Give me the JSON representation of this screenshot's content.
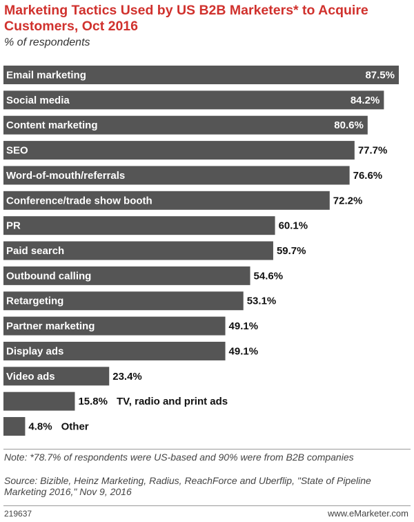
{
  "chart_data": {
    "type": "bar",
    "orientation": "horizontal",
    "title": "Marketing Tactics Used by US B2B Marketers* to Acquire Customers, Oct 2016",
    "subtitle": "% of respondents",
    "categories": [
      "Email marketing",
      "Social media",
      "Content marketing",
      "SEO",
      "Word-of-mouth/referrals",
      "Conference/trade show booth",
      "PR",
      "Paid search",
      "Outbound calling",
      "Retargeting",
      "Partner marketing",
      "Display ads",
      "Video ads",
      "TV, radio and print ads",
      "Other"
    ],
    "values": [
      87.5,
      84.2,
      80.6,
      77.7,
      76.6,
      72.2,
      60.1,
      59.7,
      54.6,
      53.1,
      49.1,
      49.1,
      23.4,
      15.8,
      4.8
    ],
    "value_labels": [
      "87.5%",
      "84.2%",
      "80.6%",
      "77.7%",
      "76.6%",
      "72.2%",
      "60.1%",
      "59.7%",
      "54.6%",
      "53.1%",
      "49.1%",
      "49.1%",
      "23.4%",
      "15.8%",
      "4.8%"
    ],
    "color": "#555555",
    "note": "Note: *78.7% of respondents were US-based and 90% were from B2B companies",
    "source": "Source: Bizible, Heinz Marketing, Radius, ReachForce and Uberflip, \"State of Pipeline Marketing 2016,\" Nov 9, 2016",
    "chart_id": "219637",
    "publisher": "www.eMarketer.com"
  }
}
